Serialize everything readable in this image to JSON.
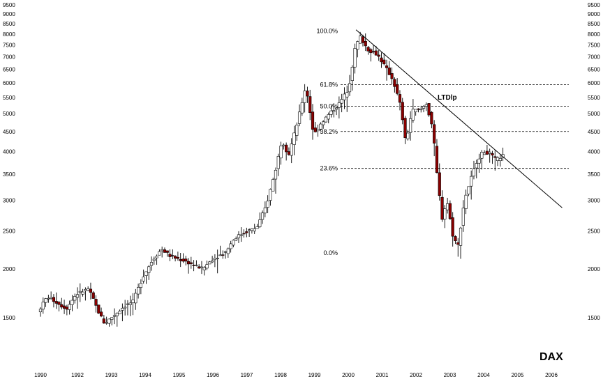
{
  "chart_data": {
    "type": "candlestick",
    "title": "DAX",
    "y_scale": "log",
    "ylim": [
      1350,
      9500
    ],
    "xlim": [
      1990.0,
      2006.4
    ],
    "y_ticks": [
      1500,
      2000,
      2500,
      3000,
      3500,
      4000,
      4500,
      5000,
      5500,
      6000,
      6500,
      7000,
      7500,
      8000,
      8500,
      9000,
      9500
    ],
    "x_ticks": [
      "1990",
      "1992",
      "1993",
      "1994",
      "1995",
      "1996",
      "1997",
      "1998",
      "1999",
      "2000",
      "2001",
      "2002",
      "2003",
      "2004",
      "2005",
      "2006"
    ],
    "grid": false,
    "up_color": "#ffffff",
    "down_color": "#8b0000",
    "line_color": "#000000",
    "fib_levels": [
      {
        "label": "100.0%",
        "value": 8136
      },
      {
        "label": "61.8%",
        "value": 5930
      },
      {
        "label": "50.0%",
        "value": 5220
      },
      {
        "label": "38.2%",
        "value": 4500
      },
      {
        "label": "23.6%",
        "value": 3620
      },
      {
        "label": "0.0%",
        "value": 2200
      }
    ],
    "trendline": {
      "label": "LTDlp",
      "from": [
        1999.95,
        8200
      ],
      "to": [
        2006.45,
        2870
      ]
    },
    "anchors": [
      [
        1990.0,
        1550
      ],
      [
        1990.3,
        1700
      ],
      [
        1990.6,
        1640
      ],
      [
        1990.9,
        1580
      ],
      [
        1991.2,
        1720
      ],
      [
        1991.6,
        1780
      ],
      [
        1991.9,
        1560
      ],
      [
        1992.1,
        1450
      ],
      [
        1992.4,
        1520
      ],
      [
        1992.7,
        1600
      ],
      [
        1993.0,
        1650
      ],
      [
        1993.3,
        1900
      ],
      [
        1993.6,
        2100
      ],
      [
        1993.9,
        2250
      ],
      [
        1994.2,
        2150
      ],
      [
        1994.6,
        2100
      ],
      [
        1994.9,
        2050
      ],
      [
        1995.2,
        2000
      ],
      [
        1995.5,
        2120
      ],
      [
        1995.9,
        2200
      ],
      [
        1996.2,
        2400
      ],
      [
        1996.6,
        2500
      ],
      [
        1996.9,
        2550
      ],
      [
        1997.2,
        2900
      ],
      [
        1997.5,
        3600
      ],
      [
        1997.7,
        4300
      ],
      [
        1997.9,
        3900
      ],
      [
        1998.2,
        4800
      ],
      [
        1998.45,
        5900
      ],
      [
        1998.7,
        4400
      ],
      [
        1998.9,
        4700
      ],
      [
        1999.2,
        5000
      ],
      [
        1999.5,
        5300
      ],
      [
        1999.8,
        5800
      ],
      [
        2000.0,
        7300
      ],
      [
        2000.15,
        7900
      ],
      [
        2000.4,
        7300
      ],
      [
        2000.7,
        7100
      ],
      [
        2000.95,
        6600
      ],
      [
        2001.2,
        6100
      ],
      [
        2001.45,
        5200
      ],
      [
        2001.6,
        4200
      ],
      [
        2001.8,
        5100
      ],
      [
        2002.05,
        5100
      ],
      [
        2002.25,
        5300
      ],
      [
        2002.45,
        4600
      ],
      [
        2002.6,
        3400
      ],
      [
        2002.75,
        2700
      ],
      [
        2002.9,
        3000
      ],
      [
        2003.1,
        2400
      ],
      [
        2003.25,
        2300
      ],
      [
        2003.45,
        3000
      ],
      [
        2003.65,
        3400
      ],
      [
        2003.85,
        3800
      ],
      [
        2004.05,
        4000
      ],
      [
        2004.25,
        3950
      ],
      [
        2004.45,
        3800
      ],
      [
        2004.65,
        3900
      ]
    ]
  }
}
